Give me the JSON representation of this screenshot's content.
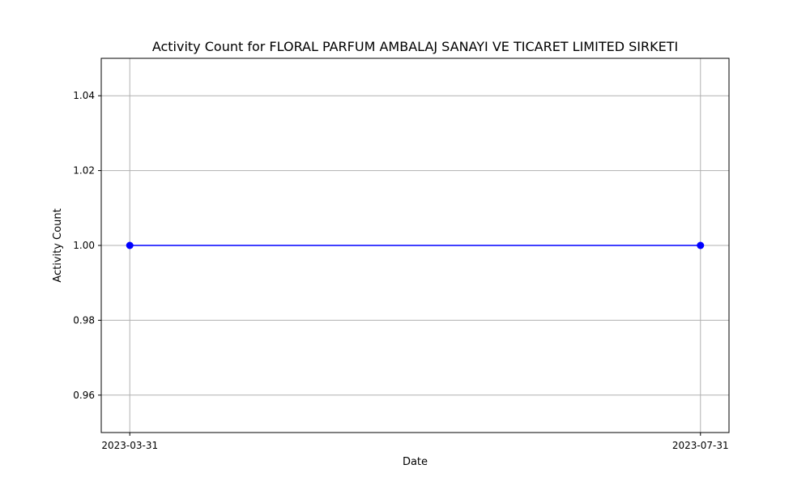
{
  "chart_data": {
    "type": "line",
    "title": "Activity Count for FLORAL PARFUM AMBALAJ SANAYI VE TICARET LIMITED SIRKETI",
    "xlabel": "Date",
    "ylabel": "Activity Count",
    "x": [
      "2023-03-31",
      "2023-07-31"
    ],
    "series": [
      {
        "values": [
          1.0,
          1.0
        ],
        "color": "#0000ff",
        "marker": "circle"
      }
    ],
    "xticks": [
      "2023-03-31",
      "2023-07-31"
    ],
    "ylim": [
      0.95,
      1.05
    ],
    "yticks": [
      0.96,
      0.98,
      1.0,
      1.02,
      1.04
    ],
    "ytick_labels": [
      "0.96",
      "0.98",
      "1.00",
      "1.02",
      "1.04"
    ],
    "grid": true,
    "grid_color": "#b0b0b0"
  }
}
